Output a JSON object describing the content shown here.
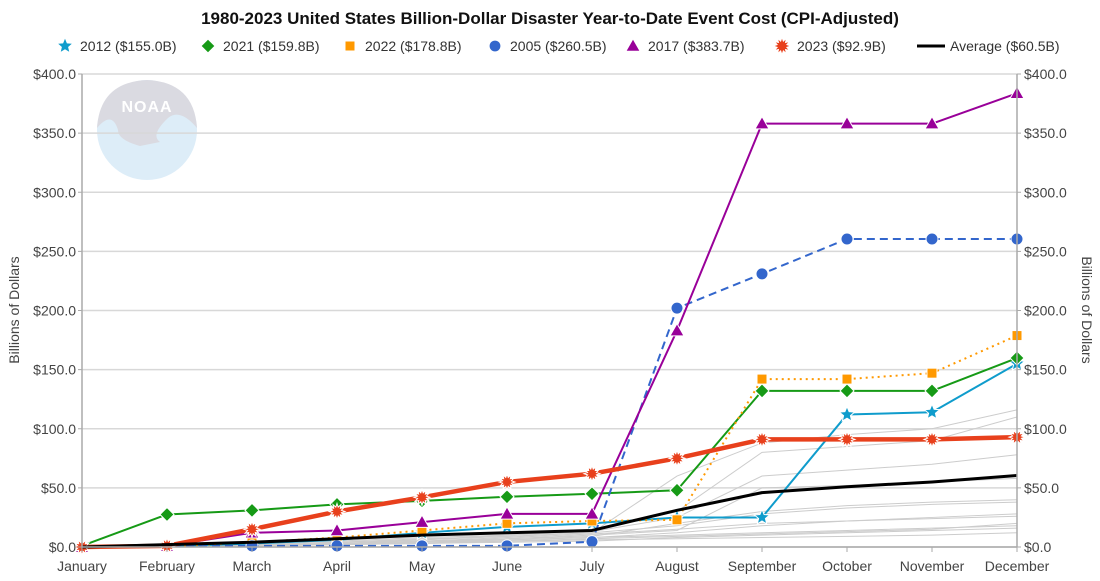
{
  "chart_data": {
    "type": "line",
    "title": "1980-2023 United States Billion-Dollar Disaster Year-to-Date Event Cost (CPI-Adjusted)",
    "ylabel": "Billions of Dollars",
    "ylabel_right": "Billions of Dollars",
    "ylim": [
      0,
      400
    ],
    "yticks": [
      0,
      50,
      100,
      150,
      200,
      250,
      300,
      350,
      400
    ],
    "ytick_labels": [
      "$0.0",
      "$50.0",
      "$100.0",
      "$150.0",
      "$200.0",
      "$250.0",
      "$300.0",
      "$350.0",
      "$400.0"
    ],
    "categories": [
      "January",
      "February",
      "March",
      "April",
      "May",
      "June",
      "July",
      "August",
      "September",
      "October",
      "November",
      "December"
    ],
    "grid": true,
    "legend_position": "top",
    "watermark": "NOAA",
    "background_series_color": "#cccccc",
    "background_series": [
      [
        0,
        1,
        2,
        3,
        5,
        7,
        9,
        20,
        30,
        35,
        38,
        40
      ],
      [
        0,
        0,
        1,
        2,
        4,
        6,
        8,
        12,
        18,
        22,
        25,
        28
      ],
      [
        0,
        1,
        3,
        5,
        8,
        10,
        13,
        25,
        60,
        65,
        70,
        78
      ],
      [
        0,
        0,
        1,
        2,
        3,
        4,
        5,
        8,
        10,
        12,
        14,
        16
      ],
      [
        0,
        1,
        2,
        4,
        6,
        9,
        12,
        60,
        88,
        95,
        100,
        116
      ],
      [
        0,
        0,
        2,
        3,
        5,
        8,
        11,
        15,
        20,
        22,
        24,
        26
      ],
      [
        0,
        1,
        2,
        3,
        4,
        6,
        8,
        10,
        12,
        14,
        16,
        18
      ],
      [
        0,
        0,
        1,
        3,
        6,
        10,
        14,
        30,
        80,
        85,
        90,
        110
      ],
      [
        0,
        1,
        1,
        2,
        3,
        5,
        7,
        9,
        11,
        13,
        15,
        20
      ],
      [
        0,
        0,
        2,
        4,
        7,
        9,
        12,
        18,
        28,
        33,
        36,
        38
      ],
      [
        0,
        1,
        2,
        3,
        4,
        5,
        6,
        7,
        8,
        9,
        10,
        12
      ],
      [
        0,
        0,
        1,
        2,
        4,
        7,
        10,
        14,
        50,
        52,
        55,
        58
      ]
    ],
    "series": [
      {
        "name": "2012 ($155.0B)",
        "color": "#0f9ccc",
        "marker": "star",
        "dash": "solid",
        "width": 2,
        "values": [
          0,
          0.5,
          3,
          6,
          12,
          17,
          20,
          25,
          25,
          112,
          114,
          155.0
        ]
      },
      {
        "name": "2021 ($159.8B)",
        "color": "#169a16",
        "marker": "diamond",
        "dash": "solid",
        "width": 2,
        "values": [
          1,
          27.5,
          31,
          36,
          39,
          42.5,
          45,
          48,
          132,
          132,
          132,
          159.8
        ]
      },
      {
        "name": "2022 ($178.8B)",
        "color": "#ff9900",
        "marker": "square",
        "dash": "dotted",
        "width": 2,
        "values": [
          0,
          0.5,
          4,
          8,
          14,
          20,
          22,
          23,
          142,
          142,
          147,
          178.8
        ]
      },
      {
        "name": "2005 ($260.5B)",
        "color": "#3366cc",
        "marker": "circle",
        "dash": "dashed",
        "width": 2,
        "values": [
          0,
          0.5,
          1,
          1,
          1,
          1,
          4.5,
          202,
          231,
          260.5,
          260.5,
          260.5
        ]
      },
      {
        "name": "2017 ($383.7B)",
        "color": "#990099",
        "marker": "triangle",
        "dash": "solid",
        "width": 2,
        "values": [
          0,
          1,
          12,
          14,
          21,
          28,
          28,
          183,
          358,
          358,
          358,
          383.7
        ]
      },
      {
        "name": "2023 ($92.9B)",
        "color": "#e8401c",
        "marker": "burst",
        "dash": "solid",
        "width": 4.5,
        "values": [
          0,
          1,
          15,
          30,
          42,
          55,
          62,
          75,
          91,
          91,
          91,
          92.9
        ]
      },
      {
        "name": "Average ($60.5B)",
        "color": "#000000",
        "marker": "none",
        "dash": "solid",
        "width": 3,
        "values": [
          0,
          2,
          4,
          7,
          10,
          12,
          14,
          31,
          46,
          51,
          55,
          60.5
        ]
      }
    ]
  }
}
